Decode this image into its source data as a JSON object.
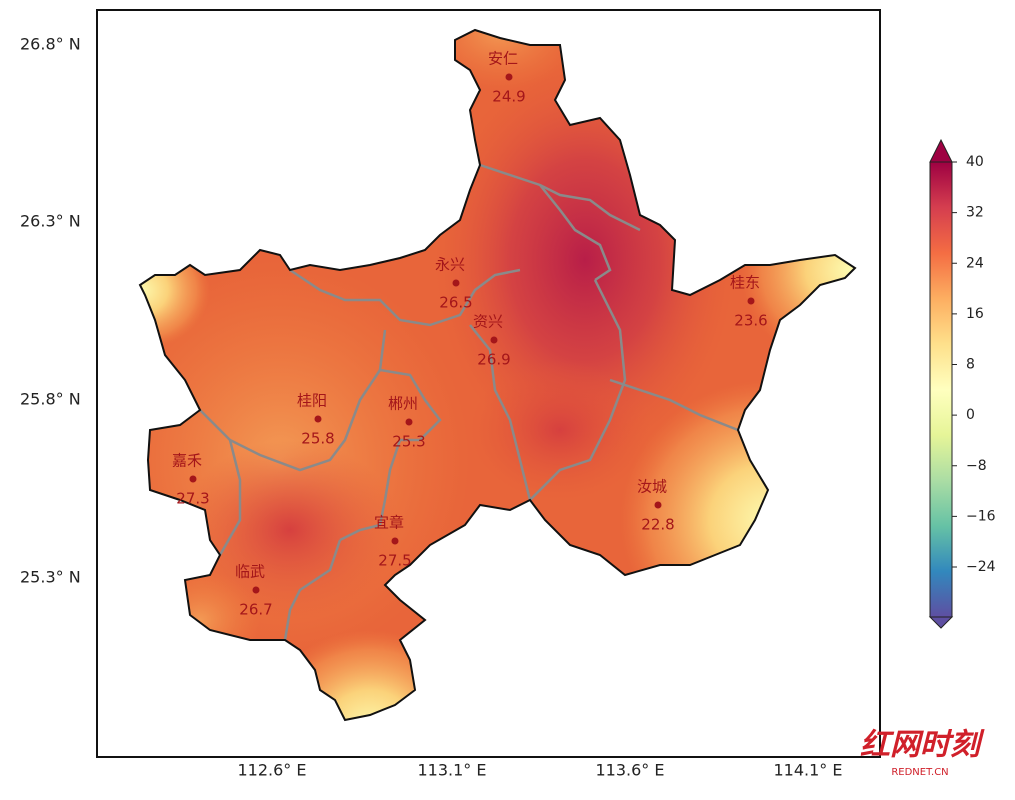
{
  "map": {
    "lat_labels": [
      "26.8° N",
      "26.3° N",
      "25.8° N",
      "25.3° N"
    ],
    "lon_labels": [
      "112.6° E",
      "113.1° E",
      "113.6° E",
      "114.1° E"
    ],
    "stations": [
      {
        "name": "安仁",
        "value": "24.9"
      },
      {
        "name": "永兴",
        "value": "26.5"
      },
      {
        "name": "资兴",
        "value": "26.9"
      },
      {
        "name": "桂东",
        "value": "23.6"
      },
      {
        "name": "桂阳",
        "value": "25.8"
      },
      {
        "name": "郴州",
        "value": "25.3"
      },
      {
        "name": "嘉禾",
        "value": "27.3"
      },
      {
        "name": "宜章",
        "value": "27.5"
      },
      {
        "name": "临武",
        "value": "26.7"
      },
      {
        "name": "汝城",
        "value": "22.8"
      }
    ],
    "colorbar": {
      "ticks": [
        40,
        32,
        24,
        16,
        8,
        0,
        {
          "value": -8,
          "label": "−8"
        },
        {
          "value": -16,
          "label": "−16"
        },
        {
          "value": -24,
          "label": "−24"
        }
      ]
    },
    "watermark": {
      "brand": "红网时刻",
      "site": "REDNET.CN"
    }
  }
}
